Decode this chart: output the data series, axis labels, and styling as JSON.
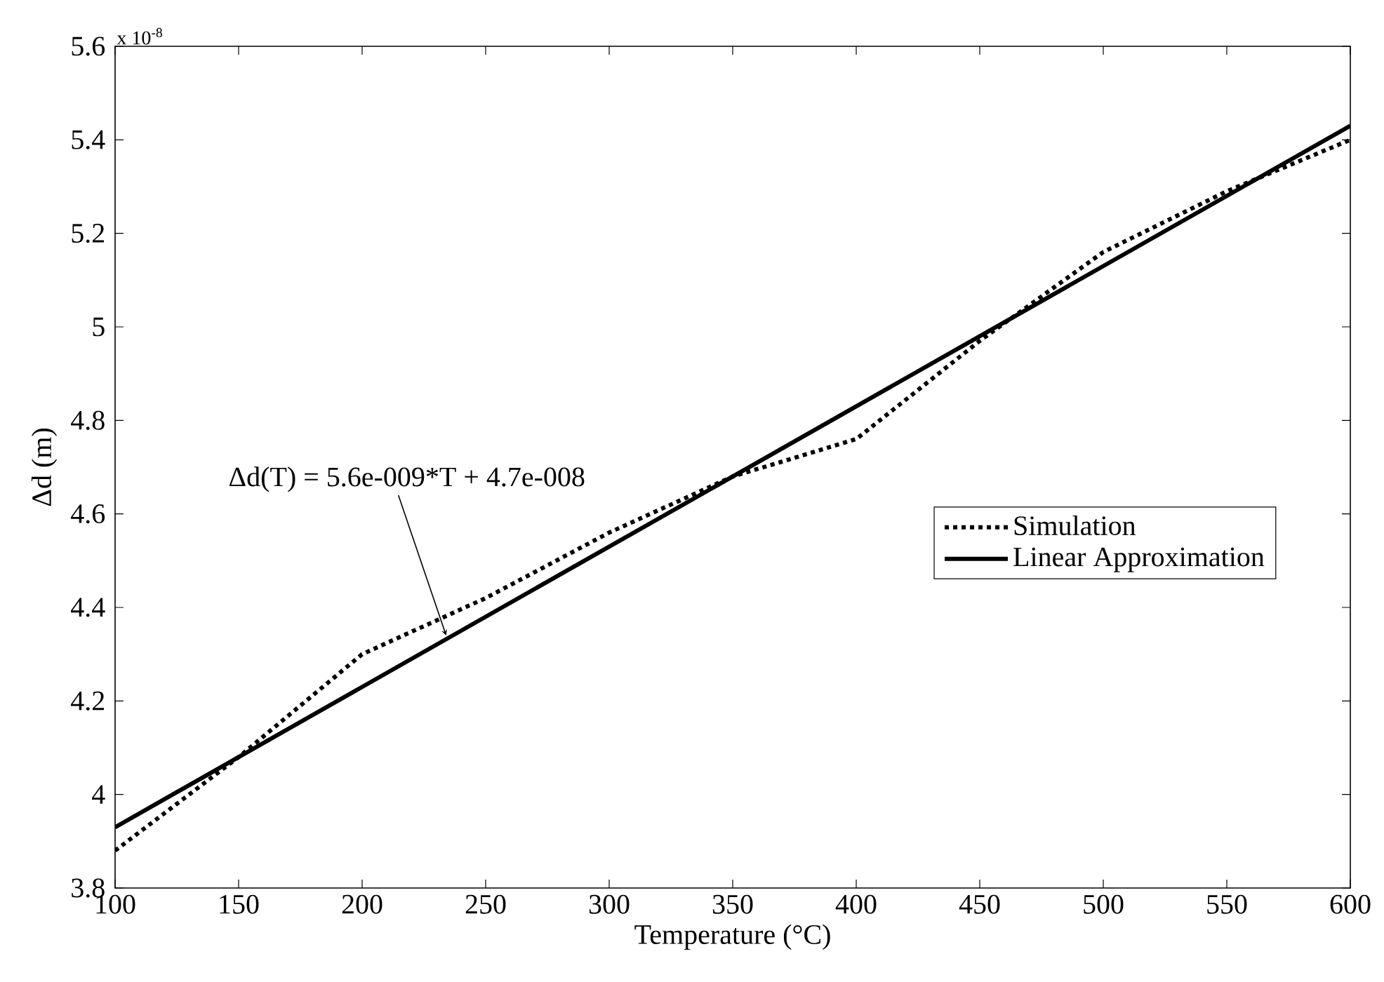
{
  "chart_data": {
    "type": "line",
    "xlabel": "Temperature (°C)",
    "ylabel": "Δd (m)",
    "xlim": [
      100,
      600
    ],
    "ylim": [
      3.8,
      5.6
    ],
    "xticks": [
      100,
      150,
      200,
      250,
      300,
      350,
      400,
      450,
      500,
      550,
      600
    ],
    "yticks": [
      3.8,
      4,
      4.2,
      4.4,
      4.6,
      4.8,
      5,
      5.2,
      5.4,
      5.6
    ],
    "series": [
      {
        "name": "Simulation",
        "color": "#000000",
        "line_style": "dotted",
        "x": [
          100,
          150,
          200,
          250,
          300,
          350,
          400,
          450,
          500,
          550,
          600
        ],
        "values": [
          3.88,
          4.08,
          4.3,
          4.42,
          4.56,
          4.68,
          4.76,
          4.97,
          5.16,
          5.29,
          5.4
        ]
      },
      {
        "name": "Linear Approximation",
        "color": "#000000",
        "line_style": "solid",
        "x": [
          100,
          600
        ],
        "values": [
          3.93,
          5.43
        ]
      }
    ],
    "annotations": [
      "x 10$^{-8}$",
      {
        "text": "Δd(T) = 5.6e-009*T + 4.7e-008",
        "x": 234,
        "y": 4.34
      }
    ],
    "legend": "right",
    "grid": false
  }
}
